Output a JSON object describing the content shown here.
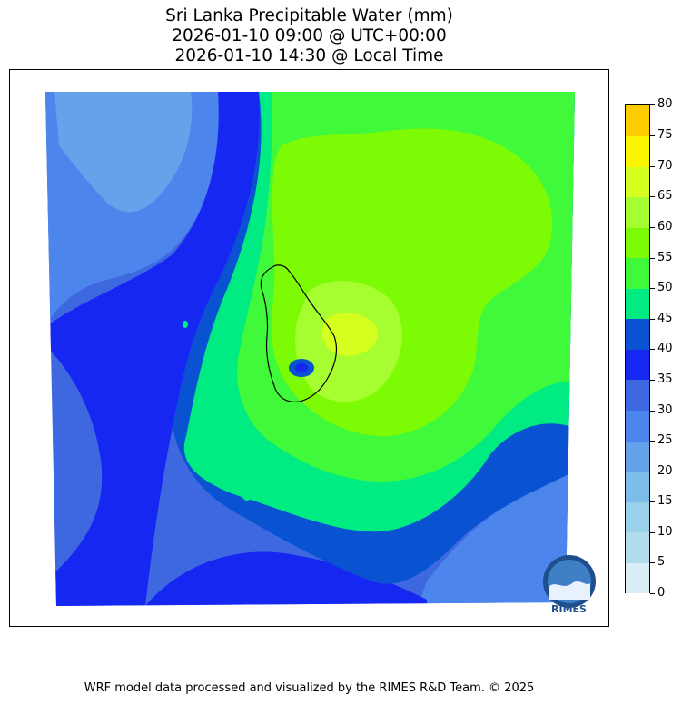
{
  "title": {
    "line1": "Sri Lanka Precipitable Water (mm)",
    "line2": "2026-01-10 09:00 @ UTC+00:00",
    "line3": "2026-01-10 14:30 @ Local Time"
  },
  "colorbar": {
    "ticks": [
      "0",
      "5",
      "10",
      "15",
      "20",
      "25",
      "30",
      "35",
      "40",
      "45",
      "50",
      "55",
      "60",
      "65",
      "70",
      "75",
      "80"
    ],
    "colors": [
      "#dbeef8",
      "#b2dcec",
      "#99d0ea",
      "#7cbdea",
      "#64a2eb",
      "#4c86ec",
      "#3e68e0",
      "#1627f2",
      "#0953d3",
      "#00ec82",
      "#40f93a",
      "#7dfb05",
      "#a6fd30",
      "#d5ff1e",
      "#fcf700",
      "#ffcc00"
    ]
  },
  "logo": {
    "text": "RIMES"
  },
  "footer": "WRF model data processed and visualized by the RIMES R&D Team. © 2025",
  "map_colors": {
    "pw_25": "#64a2eb",
    "pw_30": "#4c86ec",
    "pw_35": "#3e68e0",
    "pw_40": "#1627f2",
    "pw_45": "#0953d3",
    "pw_50": "#00ec82",
    "pw_55": "#40f93a",
    "pw_60": "#7dfb05",
    "pw_65": "#a6fd30",
    "pw_70": "#d5ff1e"
  }
}
